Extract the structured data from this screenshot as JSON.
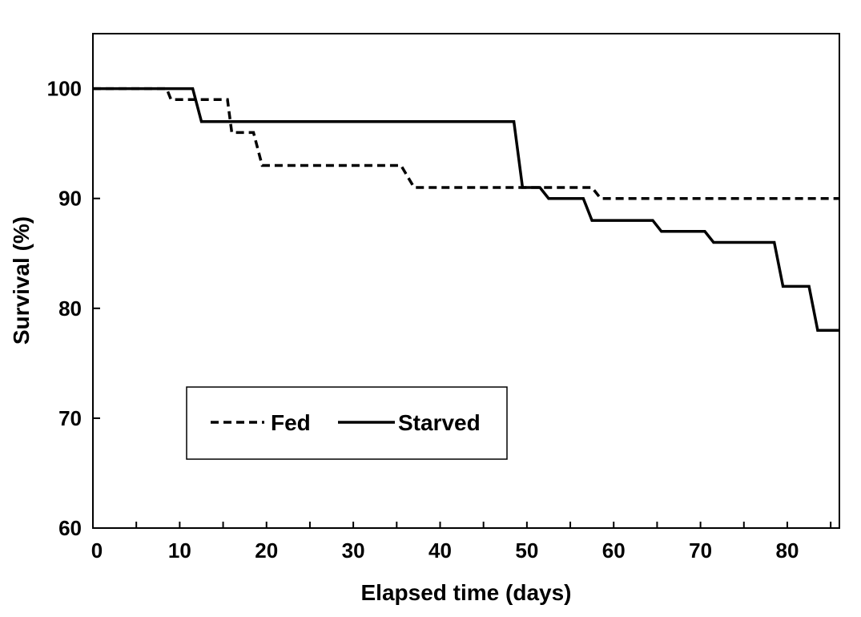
{
  "chart_data": {
    "type": "line",
    "title": "",
    "xlabel": "Elapsed time (days)",
    "ylabel": "Survival (%)",
    "xlim": [
      0,
      86
    ],
    "ylim": [
      60,
      105
    ],
    "x_ticks": [
      0,
      10,
      20,
      30,
      40,
      50,
      60,
      70,
      80
    ],
    "y_ticks": [
      60,
      70,
      80,
      90,
      100
    ],
    "grid": false,
    "legend": {
      "placement": "lower-left-inside"
    },
    "series": [
      {
        "name": "Fed",
        "style": "dashed",
        "color": "#000000",
        "points": [
          [
            0,
            100
          ],
          [
            8.5,
            100
          ],
          [
            9,
            99
          ],
          [
            15.5,
            99
          ],
          [
            16,
            96
          ],
          [
            18.5,
            96
          ],
          [
            19.5,
            93
          ],
          [
            35.5,
            93
          ],
          [
            37,
            91
          ],
          [
            57.5,
            91
          ],
          [
            58.5,
            90
          ],
          [
            86,
            90
          ]
        ]
      },
      {
        "name": "Starved",
        "style": "solid",
        "color": "#000000",
        "points": [
          [
            0,
            100
          ],
          [
            11.5,
            100
          ],
          [
            12.5,
            97
          ],
          [
            48.5,
            97
          ],
          [
            49.5,
            91
          ],
          [
            51.5,
            91
          ],
          [
            52.5,
            90
          ],
          [
            56.5,
            90
          ],
          [
            57.5,
            88
          ],
          [
            64.5,
            88
          ],
          [
            65.5,
            87
          ],
          [
            70.5,
            87
          ],
          [
            71.5,
            86
          ],
          [
            78.5,
            86
          ],
          [
            79.5,
            82
          ],
          [
            82.5,
            82
          ],
          [
            83.5,
            78
          ],
          [
            86,
            78
          ]
        ]
      }
    ]
  }
}
